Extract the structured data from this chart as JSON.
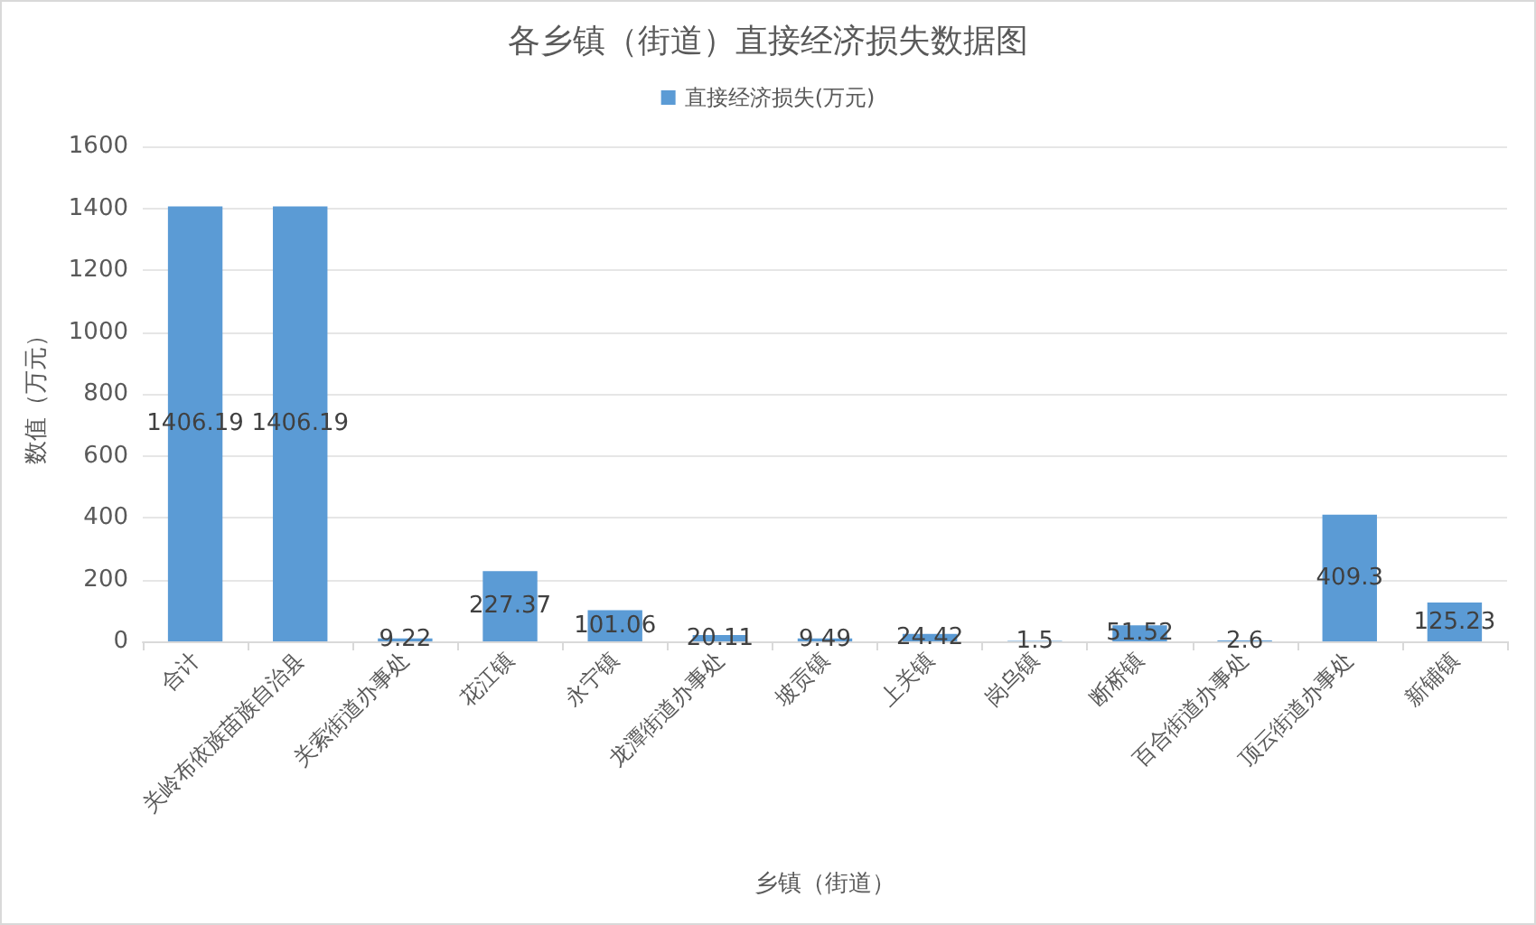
{
  "chart_data": {
    "type": "bar",
    "title": "各乡镇（街道）直接经济损失数据图",
    "xlabel": "乡镇（街道）",
    "ylabel": "数值（万元）",
    "categories": [
      "合计",
      "关岭布依族苗族自治县",
      "关索街道办事处",
      "花江镇",
      "永宁镇",
      "龙潭街道办事处",
      "坡贡镇",
      "上关镇",
      "岗乌镇",
      "断桥镇",
      "百合街道办事处",
      "顶云街道办事处",
      "新铺镇"
    ],
    "series": [
      {
        "name": "直接经济损失(万元)",
        "color": "#5b9bd5",
        "values": [
          1406.19,
          1406.19,
          9.22,
          227.37,
          101.06,
          20.11,
          9.49,
          24.42,
          1.5,
          51.52,
          2.6,
          409.3,
          125.23
        ]
      }
    ],
    "ylim": [
      0,
      1600
    ],
    "yticks": [
      0,
      200,
      400,
      600,
      800,
      1000,
      1200,
      1400,
      1600
    ],
    "grid": "y",
    "legend": "top",
    "data_labels": true
  }
}
